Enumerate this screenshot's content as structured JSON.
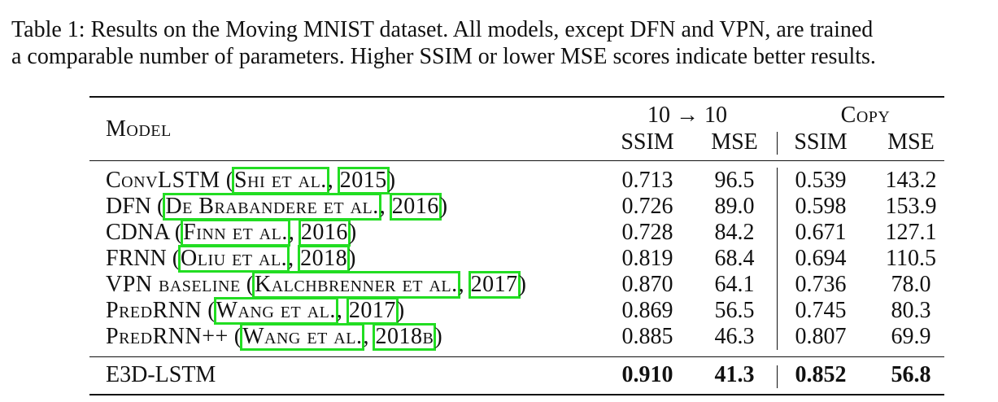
{
  "caption": {
    "line1": "Table 1: Results on the Moving MNIST dataset. All models, except DFN and VPN, are trained",
    "line2": "a comparable number of parameters. Higher SSIM or lower MSE scores indicate better results."
  },
  "table": {
    "header": {
      "model": "Model",
      "group1": "10 → 10",
      "group2": "Copy",
      "ssim1": "SSIM",
      "mse1": "MSE",
      "ssim2": "SSIM",
      "mse2": "MSE"
    },
    "rows": [
      {
        "name": "ConvLSTM",
        "pre": " (",
        "cite_author": "Shi et al.",
        "sep": ", ",
        "cite_year": "2015",
        "post": ")",
        "ssim1": "0.713",
        "mse1": "96.5",
        "ssim2": "0.539",
        "mse2": "143.2"
      },
      {
        "name": "DFN",
        "pre": " (",
        "cite_author": "De Brabandere et al.",
        "sep": ", ",
        "cite_year": "2016",
        "post": ")",
        "ssim1": "0.726",
        "mse1": "89.0",
        "ssim2": "0.598",
        "mse2": "153.9"
      },
      {
        "name": "CDNA",
        "pre": " (",
        "cite_author": "Finn et al.",
        "sep": ", ",
        "cite_year": "2016",
        "post": ")",
        "ssim1": "0.728",
        "mse1": "84.2",
        "ssim2": "0.671",
        "mse2": "127.1"
      },
      {
        "name": "FRNN",
        "pre": " (",
        "cite_author": "Oliu et al.",
        "sep": ", ",
        "cite_year": "2018",
        "post": ")",
        "ssim1": "0.819",
        "mse1": "68.4",
        "ssim2": "0.694",
        "mse2": "110.5"
      },
      {
        "name": "VPN baseline",
        "pre": " (",
        "cite_author": "Kalchbrenner et al.",
        "sep": ", ",
        "cite_year": "2017",
        "post": ")",
        "ssim1": "0.870",
        "mse1": "64.1",
        "ssim2": "0.736",
        "mse2": "78.0"
      },
      {
        "name": "PredRNN",
        "pre": " (",
        "cite_author": "Wang et al.",
        "sep": ", ",
        "cite_year": "2017",
        "post": ")",
        "ssim1": "0.869",
        "mse1": "56.5",
        "ssim2": "0.745",
        "mse2": "80.3"
      },
      {
        "name": "PredRNN++",
        "pre": " (",
        "cite_author": "Wang et al.",
        "sep": ", ",
        "cite_year": "2018b",
        "post": ")",
        "ssim1": "0.885",
        "mse1": "46.3",
        "ssim2": "0.807",
        "mse2": "69.9"
      }
    ],
    "final_row": {
      "name": "E3D-LSTM",
      "ssim1": "0.910",
      "mse1": "41.3",
      "ssim2": "0.852",
      "mse2": "56.8"
    }
  }
}
